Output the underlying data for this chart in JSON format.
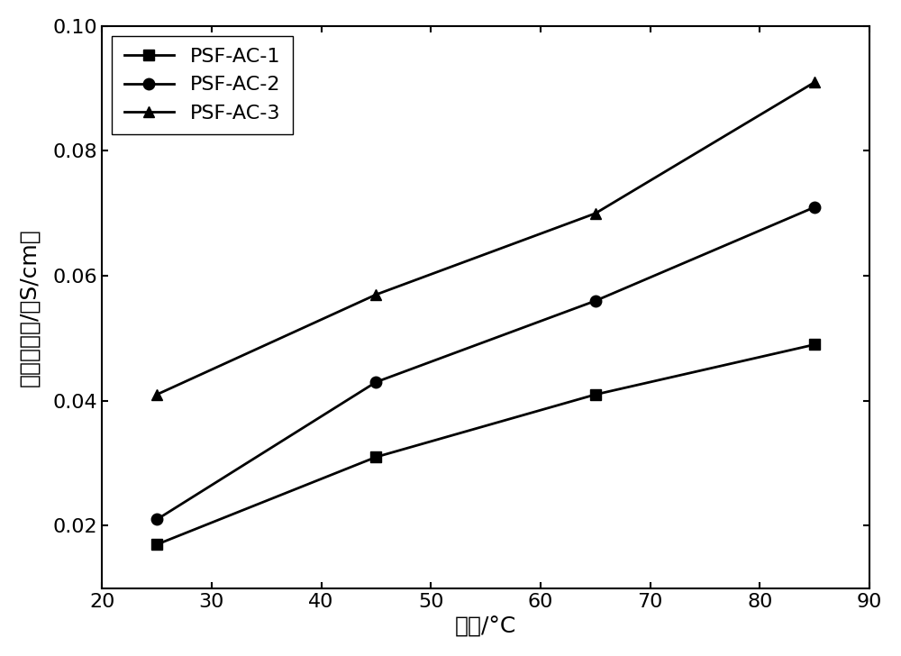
{
  "x": [
    25,
    45,
    65,
    85
  ],
  "series": [
    {
      "label": "PSF-AC-1",
      "y": [
        0.017,
        0.031,
        0.041,
        0.049
      ],
      "marker": "s",
      "color": "#000000",
      "markersize": 9
    },
    {
      "label": "PSF-AC-2",
      "y": [
        0.021,
        0.043,
        0.056,
        0.071
      ],
      "marker": "o",
      "color": "#000000",
      "markersize": 9
    },
    {
      "label": "PSF-AC-3",
      "y": [
        0.041,
        0.057,
        0.07,
        0.091
      ],
      "marker": "^",
      "color": "#000000",
      "markersize": 9
    }
  ],
  "xlabel": "温度/°C",
  "ylabel": "离子传导率/（S/cm）",
  "xlim": [
    20,
    90
  ],
  "ylim": [
    0.01,
    0.1
  ],
  "xticks": [
    20,
    30,
    40,
    50,
    60,
    70,
    80,
    90
  ],
  "yticks": [
    0.02,
    0.04,
    0.06,
    0.08,
    0.1
  ],
  "legend_loc": "upper left",
  "linewidth": 2.0,
  "background_color": "#ffffff",
  "fig_width": 10.0,
  "fig_height": 7.28,
  "tick_fontsize": 16,
  "label_fontsize": 18,
  "legend_fontsize": 16
}
